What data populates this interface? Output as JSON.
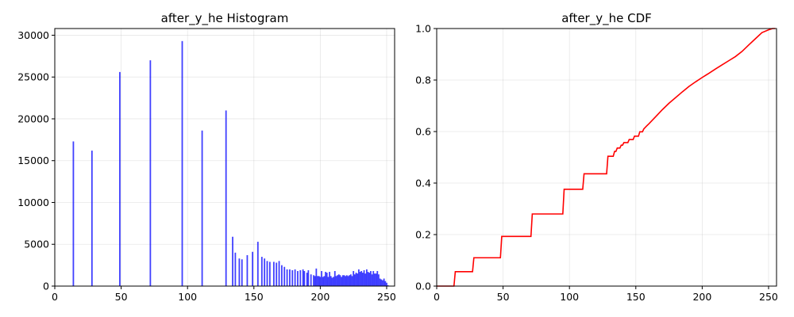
{
  "chart_data": [
    {
      "type": "bar",
      "title": "after_y_he Histogram",
      "xlim": [
        0,
        256
      ],
      "ylim": [
        0,
        30800
      ],
      "grid": true,
      "color": "#0000ff",
      "xticks": [
        0,
        50,
        100,
        150,
        200,
        250
      ],
      "yticks": [
        0,
        5000,
        10000,
        15000,
        20000,
        25000,
        30000
      ],
      "x": [
        14,
        28,
        49,
        72,
        96,
        111,
        129,
        134,
        136,
        139,
        141,
        145,
        149,
        153,
        156,
        158,
        160,
        162,
        165,
        167,
        169,
        171,
        173,
        175,
        177,
        179,
        181,
        183,
        185,
        187,
        188,
        190,
        191,
        193,
        195,
        196,
        197,
        198,
        199,
        200,
        201,
        202,
        203,
        204,
        205,
        206,
        207,
        208,
        209,
        210,
        211,
        212,
        213,
        214,
        215,
        216,
        217,
        218,
        219,
        220,
        221,
        222,
        223,
        224,
        225,
        226,
        227,
        228,
        229,
        230,
        231,
        232,
        233,
        234,
        235,
        236,
        237,
        238,
        239,
        240,
        241,
        242,
        243,
        244,
        245,
        246,
        247,
        248,
        249,
        250,
        251
      ],
      "values": [
        17300,
        16200,
        25600,
        27000,
        29300,
        18600,
        21000,
        5900,
        4000,
        3300,
        3200,
        3700,
        4100,
        5300,
        3500,
        3300,
        3000,
        2900,
        2900,
        2800,
        3000,
        2500,
        2300,
        2000,
        2000,
        1900,
        2000,
        1800,
        1900,
        2000,
        1800,
        1600,
        1900,
        1400,
        1300,
        1200,
        2100,
        1200,
        1200,
        1100,
        1800,
        1100,
        1200,
        1700,
        1600,
        1100,
        1700,
        1200,
        1000,
        1100,
        1800,
        1200,
        1300,
        1400,
        1300,
        1100,
        1300,
        1300,
        1200,
        1300,
        1200,
        1300,
        1400,
        1200,
        1800,
        1400,
        1600,
        1500,
        2000,
        1700,
        1800,
        1600,
        1900,
        1500,
        2000,
        1700,
        1600,
        1800,
        1400,
        1800,
        1500,
        1500,
        1800,
        1400,
        900,
        800,
        700,
        900,
        600,
        400,
        100
      ]
    },
    {
      "type": "line",
      "title": "after_y_he CDF",
      "xlim": [
        0,
        256
      ],
      "ylim": [
        0,
        1.0
      ],
      "grid": true,
      "color": "#ff0000",
      "xticks": [
        0,
        50,
        100,
        150,
        200,
        250
      ],
      "yticks": [
        0.0,
        0.2,
        0.4,
        0.6,
        0.8,
        1.0
      ],
      "ytick_labels": [
        "0.0",
        "0.2",
        "0.4",
        "0.6",
        "0.8",
        "1.0"
      ],
      "x": [
        0,
        13,
        14,
        27,
        28,
        48,
        49,
        71,
        72,
        95,
        96,
        110,
        111,
        128,
        129,
        133,
        134,
        135,
        136,
        138,
        139,
        140,
        141,
        144,
        145,
        148,
        149,
        152,
        153,
        155,
        156,
        158,
        160,
        165,
        170,
        175,
        180,
        185,
        190,
        195,
        200,
        205,
        210,
        215,
        220,
        225,
        230,
        235,
        240,
        245,
        250,
        253,
        255
      ],
      "y": [
        0,
        0,
        0.056,
        0.056,
        0.11,
        0.11,
        0.193,
        0.193,
        0.28,
        0.28,
        0.376,
        0.376,
        0.436,
        0.436,
        0.504,
        0.504,
        0.523,
        0.523,
        0.536,
        0.536,
        0.547,
        0.547,
        0.557,
        0.557,
        0.569,
        0.569,
        0.582,
        0.582,
        0.599,
        0.599,
        0.61,
        0.621,
        0.631,
        0.658,
        0.685,
        0.71,
        0.732,
        0.754,
        0.775,
        0.793,
        0.81,
        0.826,
        0.843,
        0.859,
        0.875,
        0.891,
        0.911,
        0.936,
        0.96,
        0.984,
        0.995,
        1.0,
        1.0
      ]
    }
  ]
}
